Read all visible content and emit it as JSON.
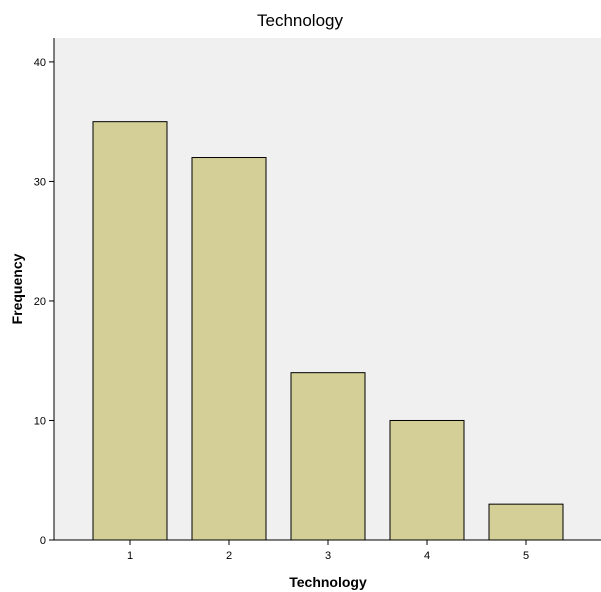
{
  "chart_data": {
    "type": "bar",
    "title": "Technology",
    "xlabel": "Technology",
    "ylabel": "Frequency",
    "categories": [
      "1",
      "2",
      "3",
      "4",
      "5"
    ],
    "values": [
      35,
      32,
      14,
      10,
      3
    ],
    "ylim": [
      0,
      42
    ],
    "yticks": [
      "0",
      "10",
      "20",
      "30",
      "40"
    ],
    "grid": false,
    "legend": "none",
    "colors": {
      "bar_fill": "#d4cf97",
      "bar_stroke": "#000000",
      "plot_background": "#f0f0f0",
      "axis": "#000000"
    }
  }
}
